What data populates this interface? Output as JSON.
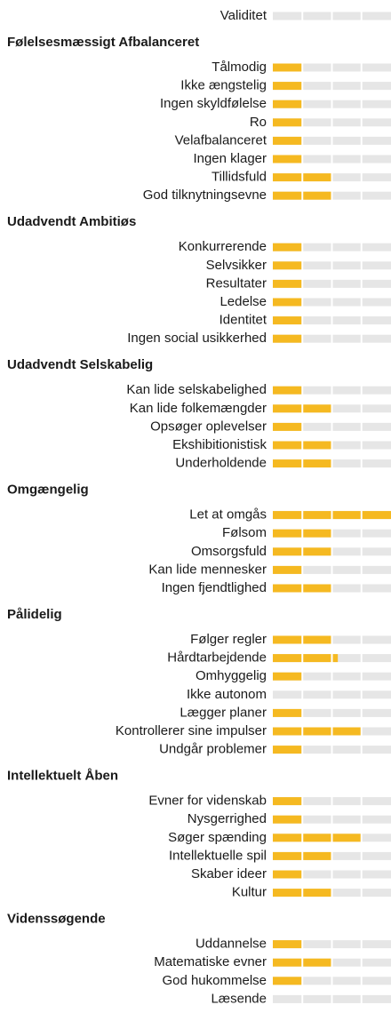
{
  "chart_data": [
    {
      "type": "segmented-bar",
      "categories": [
        "Validitet"
      ],
      "values": [
        0
      ],
      "xlim": [
        0,
        4
      ],
      "xticks": [
        1,
        2,
        3
      ],
      "color": "#f5b921",
      "track_color": "#e6e6e6"
    },
    {
      "type": "segmented-bar",
      "title": "Følelsesmæssigt Afbalanceret",
      "categories": [
        "Tålmodig",
        "Ikke ængstelig",
        "Ingen skyldfølelse",
        "Ro",
        "Velafbalanceret",
        "Ingen klager",
        "Tillidsfuld",
        "God tilknytningsevne"
      ],
      "values": [
        1,
        1,
        1,
        1,
        1,
        1,
        2,
        2
      ],
      "xlim": [
        0,
        4
      ],
      "xticks": [
        1,
        2,
        3
      ],
      "color": "#f5b921",
      "track_color": "#e6e6e6"
    },
    {
      "type": "segmented-bar",
      "title": "Udadvendt Ambitiøs",
      "categories": [
        "Konkurrerende",
        "Selvsikker",
        "Resultater",
        "Ledelse",
        "Identitet",
        "Ingen social usikkerhed"
      ],
      "values": [
        1,
        1,
        1,
        1,
        1,
        1
      ],
      "xlim": [
        0,
        4
      ],
      "xticks": [
        1,
        2,
        3
      ],
      "color": "#f5b921",
      "track_color": "#e6e6e6"
    },
    {
      "type": "segmented-bar",
      "title": "Udadvendt Selskabelig",
      "categories": [
        "Kan lide selskabelighed",
        "Kan lide folkemængder",
        "Opsøger oplevelser",
        "Ekshibitionistisk",
        "Underholdende"
      ],
      "values": [
        1,
        2,
        1,
        2,
        2
      ],
      "xlim": [
        0,
        4
      ],
      "xticks": [
        1,
        2,
        3
      ],
      "color": "#f5b921",
      "track_color": "#e6e6e6"
    },
    {
      "type": "segmented-bar",
      "title": "Omgængelig",
      "categories": [
        "Let at omgås",
        "Følsom",
        "Omsorgsfuld",
        "Kan lide mennesker",
        "Ingen fjendtlighed"
      ],
      "values": [
        4,
        2,
        2,
        1,
        2
      ],
      "xlim": [
        0,
        4
      ],
      "xticks": [
        1,
        2,
        3
      ],
      "color": "#f5b921",
      "track_color": "#e6e6e6"
    },
    {
      "type": "segmented-bar",
      "title": "Pålidelig",
      "categories": [
        "Følger regler",
        "Hårdtarbejdende",
        "Omhyggelig",
        "Ikke autonom",
        "Lægger planer",
        "Kontrollerer sine impulser",
        "Undgår problemer"
      ],
      "values": [
        2,
        2.2,
        1,
        0,
        1,
        3,
        1
      ],
      "xlim": [
        0,
        4
      ],
      "xticks": [
        1,
        2,
        3
      ],
      "color": "#f5b921",
      "track_color": "#e6e6e6"
    },
    {
      "type": "segmented-bar",
      "title": "Intellektuelt Åben",
      "categories": [
        "Evner for videnskab",
        "Nysgerrighed",
        "Søger spænding",
        "Intellektuelle spil",
        "Skaber ideer",
        "Kultur"
      ],
      "values": [
        1,
        1,
        3,
        2,
        1,
        2
      ],
      "xlim": [
        0,
        4
      ],
      "xticks": [
        1,
        2,
        3
      ],
      "color": "#f5b921",
      "track_color": "#e6e6e6"
    },
    {
      "type": "segmented-bar",
      "title": "Videnssøgende",
      "categories": [
        "Uddannelse",
        "Matematiske evner",
        "God hukommelse",
        "Læsende"
      ],
      "values": [
        1,
        2,
        1,
        0
      ],
      "xlim": [
        0,
        4
      ],
      "xticks": [
        1,
        2,
        3
      ],
      "color": "#f5b921",
      "track_color": "#e6e6e6"
    }
  ]
}
